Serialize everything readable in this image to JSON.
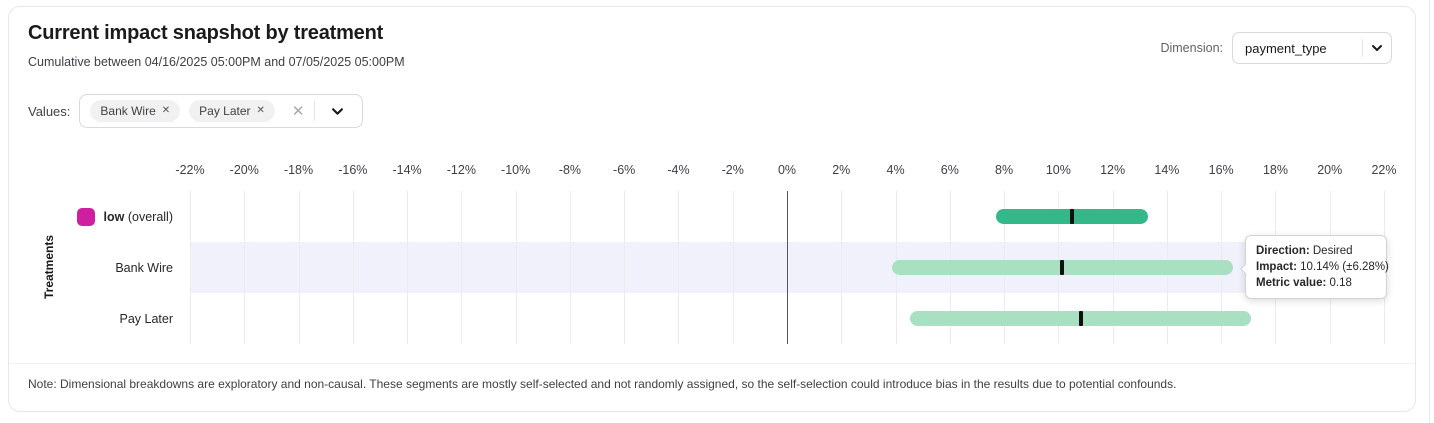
{
  "header": {
    "title": "Current impact snapshot by treatment",
    "subtitle": "Cumulative between 04/16/2025 05:00PM and 07/05/2025 05:00PM",
    "dimension_label": "Dimension:",
    "dimension_value": "payment_type"
  },
  "values_filter": {
    "label": "Values:",
    "chips": [
      {
        "label": "Bank Wire",
        "remove_icon": "✕"
      },
      {
        "label": "Pay Later",
        "remove_icon": "✕"
      }
    ],
    "clear_icon": "✕"
  },
  "tooltip": {
    "lines": [
      {
        "label": "Direction:",
        "value": " Desired"
      },
      {
        "label": "Impact:",
        "value": " 10.14% (±6.28%)"
      },
      {
        "label": "Metric value:",
        "value": " 0.18"
      }
    ]
  },
  "note": {
    "text": "Note: Dimensional breakdowns are exploratory and non-causal. These segments are mostly self-selected and not randomly assigned, so the self-selection could introduce bias in the results due to potential confounds."
  },
  "chart_data": {
    "type": "bar",
    "subtype": "horizontal-confidence-intervals",
    "title": "Current impact snapshot by treatment",
    "xlabel": "",
    "ylabel": "Treatments",
    "xlim": [
      -22,
      22
    ],
    "grid": true,
    "tick_values": [
      -22,
      -20,
      -18,
      -16,
      -14,
      -12,
      -10,
      -8,
      -6,
      -4,
      -2,
      0,
      2,
      4,
      6,
      8,
      10,
      12,
      14,
      16,
      18,
      20,
      22
    ],
    "tick_labels": [
      "-22%",
      "-20%",
      "-18%",
      "-16%",
      "-14%",
      "-12%",
      "-10%",
      "-8%",
      "-6%",
      "-4%",
      "-2%",
      "0%",
      "2%",
      "4%",
      "6%",
      "8%",
      "10%",
      "12%",
      "14%",
      "16%",
      "18%",
      "20%",
      "22%"
    ],
    "categories": [
      "low (overall)",
      "Bank Wire",
      "Pay Later"
    ],
    "series": [
      {
        "label": "low",
        "label_suffix": " (overall)",
        "legend_color": "#d01ea0",
        "impact_pct": 10.5,
        "ci_pct": 2.8,
        "bar_color": "#34b789",
        "highlighted": false
      },
      {
        "label": "Bank Wire",
        "label_suffix": "",
        "legend_color": null,
        "impact_pct": 10.14,
        "ci_pct": 6.28,
        "bar_color": "#aae0c2",
        "highlighted": true,
        "direction": "Desired",
        "metric_value": 0.18
      },
      {
        "label": "Pay Later",
        "label_suffix": "",
        "legend_color": null,
        "impact_pct": 10.82,
        "ci_pct": 6.28,
        "bar_color": "#aae0c2",
        "highlighted": false
      }
    ]
  }
}
